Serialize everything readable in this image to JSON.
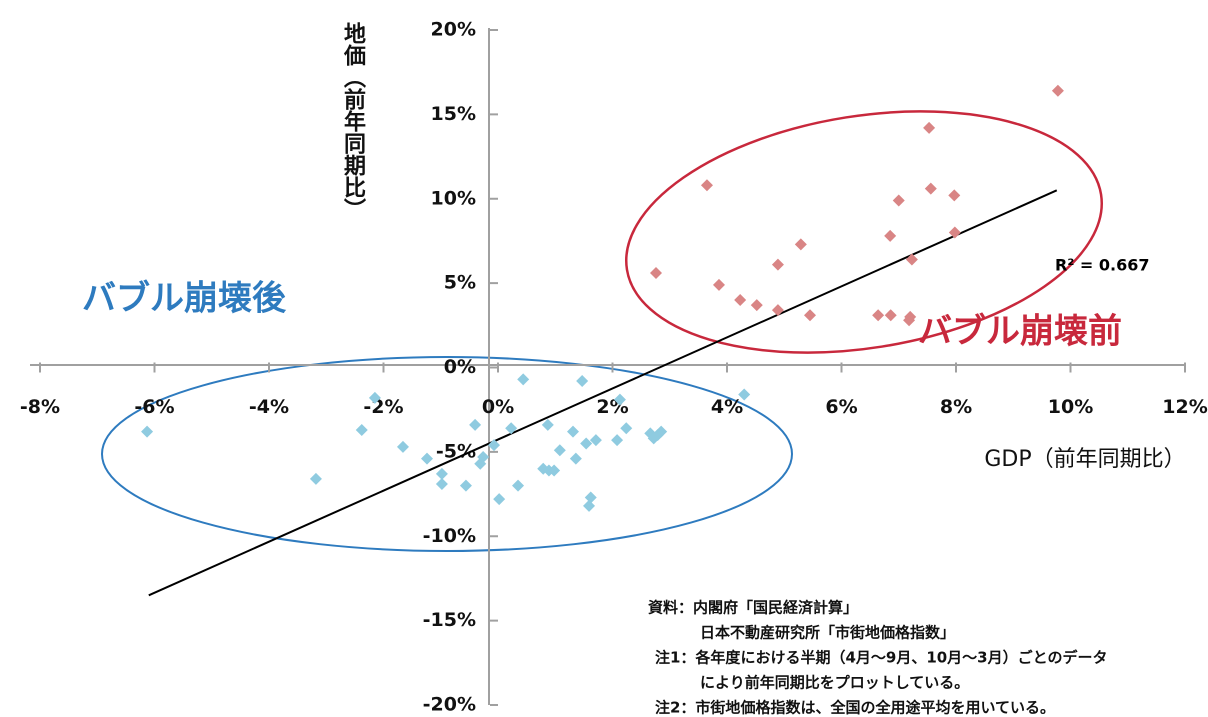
{
  "chart_data": {
    "type": "scatter",
    "x_label": "GDP（前年同期比）",
    "y_label": "地価（前年同期比）",
    "xlim": [
      -8,
      12
    ],
    "ylim": [
      -20,
      20
    ],
    "xticks": [
      {
        "value": -8,
        "label": "-8%"
      },
      {
        "value": -6,
        "label": "-6%"
      },
      {
        "value": -4,
        "label": "-4%"
      },
      {
        "value": -2,
        "label": "-2%"
      },
      {
        "value": 0,
        "label": "0%"
      },
      {
        "value": 2,
        "label": "2%"
      },
      {
        "value": 4,
        "label": "4%"
      },
      {
        "value": 6,
        "label": "6%"
      },
      {
        "value": 8,
        "label": "8%"
      },
      {
        "value": 10,
        "label": "10%"
      },
      {
        "value": 12,
        "label": "12%"
      }
    ],
    "yticks": [
      {
        "value": -20,
        "label": "-20%"
      },
      {
        "value": -15,
        "label": "-15%"
      },
      {
        "value": -10,
        "label": "-10%"
      },
      {
        "value": -5,
        "label": "-5%"
      },
      {
        "value": 0,
        "label": "0%"
      },
      {
        "value": 5,
        "label": "5%"
      },
      {
        "value": 10,
        "label": "10%"
      },
      {
        "value": 15,
        "label": "15%"
      },
      {
        "value": 20,
        "label": "20%"
      }
    ],
    "series": [
      {
        "name": "バブル崩壊前",
        "color": "#d98585",
        "x": [
          2.76,
          3.65,
          3.86,
          4.23,
          4.52,
          4.89,
          4.89,
          5.29,
          5.45,
          6.64,
          6.85,
          6.86,
          7.0,
          7.18,
          7.2,
          7.23,
          7.53,
          7.56,
          7.97,
          7.98,
          9.78
        ],
        "values": [
          5.6,
          10.8,
          4.9,
          4.0,
          3.7,
          6.1,
          3.4,
          7.3,
          3.1,
          3.1,
          7.8,
          3.1,
          9.9,
          2.8,
          3.0,
          6.4,
          14.2,
          10.6,
          10.2,
          8.0,
          16.4
        ]
      },
      {
        "name": "バブル崩壊後",
        "color": "#8fcbe0",
        "x": [
          -6.13,
          -3.18,
          -2.38,
          -2.15,
          -1.66,
          -1.24,
          -0.98,
          -0.98,
          -0.56,
          -0.4,
          -0.31,
          -0.26,
          -0.07,
          0.02,
          0.23,
          0.35,
          0.44,
          0.79,
          0.87,
          0.89,
          0.98,
          1.08,
          1.31,
          1.36,
          1.47,
          1.54,
          1.59,
          1.62,
          1.71,
          2.08,
          2.13,
          2.24,
          2.66,
          2.72,
          2.79,
          2.85,
          4.3
        ],
        "values": [
          -3.8,
          -6.6,
          -3.7,
          -1.8,
          -4.7,
          -5.4,
          -6.3,
          -6.9,
          -7.0,
          -3.4,
          -5.7,
          -5.3,
          -4.6,
          -7.8,
          -3.6,
          -7.0,
          -0.7,
          -6.0,
          -3.4,
          -6.1,
          -6.1,
          -4.9,
          -3.8,
          -5.4,
          -0.8,
          -4.5,
          -8.2,
          -7.7,
          -4.3,
          -4.3,
          -1.9,
          -3.6,
          -3.9,
          -4.2,
          -4.0,
          -3.8,
          -1.6
        ]
      }
    ],
    "trendline": {
      "x": [
        -6.1,
        9.76
      ],
      "y": [
        -13.5,
        10.5
      ],
      "color": "#000000",
      "label": "R² = 0.667"
    },
    "notes": [
      "資料：内閣府「国民経済計算」",
      "日本不動産研究所「市街地価格指数」",
      "注1：各年度における半期（4月～9月、10月～3月）ごとのデータ",
      "により前年同期比をプロットしている。",
      "注2：市街地価格指数は、全国の全用途平均を用いている。"
    ]
  }
}
